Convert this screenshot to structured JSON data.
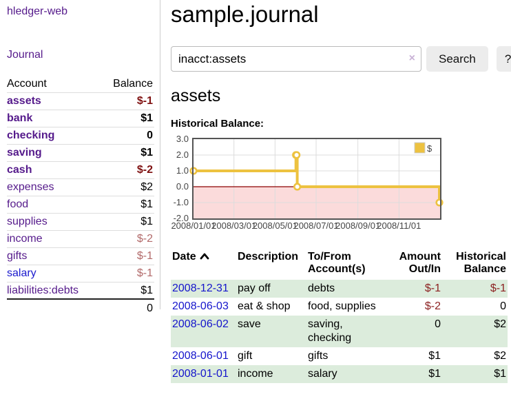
{
  "app": {
    "brand": "hledger-web"
  },
  "sidebar": {
    "nav": {
      "journal_label": "Journal"
    },
    "accounts_table": {
      "headers": {
        "account": "Account",
        "balance": "Balance"
      },
      "rows": [
        {
          "account": "assets",
          "indent": 1,
          "bold": true,
          "balance": "$-1",
          "balance_color": "neg-strong",
          "link_color": "purple"
        },
        {
          "account": "bank",
          "indent": 2,
          "bold": true,
          "balance": "$1",
          "balance_color": "normal",
          "link_color": "purple"
        },
        {
          "account": "checking",
          "indent": 3,
          "bold": true,
          "balance": "0",
          "balance_color": "normal",
          "link_color": "purple"
        },
        {
          "account": "saving",
          "indent": 3,
          "bold": true,
          "balance": "$1",
          "balance_color": "normal",
          "link_color": "purple"
        },
        {
          "account": "cash",
          "indent": 2,
          "bold": true,
          "balance": "$-2",
          "balance_color": "neg-strong",
          "link_color": "purple"
        },
        {
          "account": "expenses",
          "indent": 1,
          "bold": false,
          "balance": "$2",
          "balance_color": "normal",
          "link_color": "purple"
        },
        {
          "account": "food",
          "indent": 2,
          "bold": false,
          "balance": "$1",
          "balance_color": "normal",
          "link_color": "purple"
        },
        {
          "account": "supplies",
          "indent": 2,
          "bold": false,
          "balance": "$1",
          "balance_color": "normal",
          "link_color": "purple"
        },
        {
          "account": "income",
          "indent": 1,
          "bold": false,
          "balance": "$-2",
          "balance_color": "neg-muted",
          "link_color": "purple"
        },
        {
          "account": "gifts",
          "indent": 2,
          "bold": false,
          "balance": "$-1",
          "balance_color": "neg-muted",
          "link_color": "purple"
        },
        {
          "account": "salary",
          "indent": 2,
          "bold": false,
          "balance": "$-1",
          "balance_color": "neg-muted",
          "link_color": "blue"
        },
        {
          "account": "liabilities:debts",
          "indent": 1,
          "bold": false,
          "balance": "$1",
          "balance_color": "normal",
          "link_color": "purple"
        }
      ],
      "total": "0"
    }
  },
  "header": {
    "title": "sample.journal"
  },
  "search": {
    "query": "inacct:assets",
    "clear_icon": "×",
    "search_button": "Search",
    "help_button": "?"
  },
  "account_page": {
    "title": "assets",
    "chart_label": "Historical Balance:"
  },
  "chart_data": {
    "type": "line",
    "style": "step-after",
    "title": "Historical Balance",
    "series": [
      {
        "name": "$",
        "color": "#edc240",
        "points": [
          {
            "date": "2008-01-01",
            "value": 1
          },
          {
            "date": "2008-06-01",
            "value": 2
          },
          {
            "date": "2008-06-02",
            "value": 2
          },
          {
            "date": "2008-06-03",
            "value": 0
          },
          {
            "date": "2008-12-31",
            "value": -1
          }
        ]
      }
    ],
    "x_range": [
      "2008-01-01",
      "2009-01-01"
    ],
    "ylim": [
      -2,
      3
    ],
    "y_ticks": [
      3.0,
      2.0,
      1.0,
      0.0,
      -1.0,
      -2.0
    ],
    "x_ticks": [
      "2008/01/01",
      "2008/03/01",
      "2008/05/01",
      "2008/07/01",
      "2008/09/01",
      "2008/11/01"
    ],
    "grid": true,
    "negative_region": {
      "from": 0,
      "to": -2,
      "fill": "#fbdbdb",
      "line_color": "#8b0000"
    },
    "legend": {
      "label": "$",
      "position": "top-right"
    },
    "axis_label_color": "#444444",
    "border_color": "#545454",
    "grid_color": "#dcdcdc"
  },
  "register_table": {
    "headers": {
      "date": "Date",
      "description": "Description",
      "accounts": "To/From Account(s)",
      "amount": "Amount Out/In",
      "balance": "Historical Balance"
    },
    "sort": {
      "column": "Date",
      "direction": "ascending"
    },
    "rows": [
      {
        "date": "2008-12-31",
        "description": "pay off",
        "accounts": "debts",
        "amount": "$-1",
        "balance": "$-1"
      },
      {
        "date": "2008-06-03",
        "description": "eat & shop",
        "accounts": "food, supplies",
        "amount": "$-2",
        "balance": "0"
      },
      {
        "date": "2008-06-02",
        "description": "save",
        "accounts": "saving, checking",
        "amount": "0",
        "balance": "$2"
      },
      {
        "date": "2008-06-01",
        "description": "gift",
        "accounts": "gifts",
        "amount": "$1",
        "balance": "$2"
      },
      {
        "date": "2008-01-01",
        "description": "income",
        "accounts": "salary",
        "amount": "$1",
        "balance": "$1"
      }
    ]
  },
  "colors": {
    "accent_purple": "#551a8b",
    "link_blue": "#1a1acd",
    "table_date_blue": "#1414cc",
    "negative_strong": "#7f1111",
    "negative_muted": "#b26a6a",
    "table_negative": "#8b1f1f",
    "table_stripe_green": "#dcecdc",
    "chart_line_gold": "#edc240",
    "chart_negative_fill": "#fbdbdb",
    "chart_zero_line": "#8b0000"
  }
}
